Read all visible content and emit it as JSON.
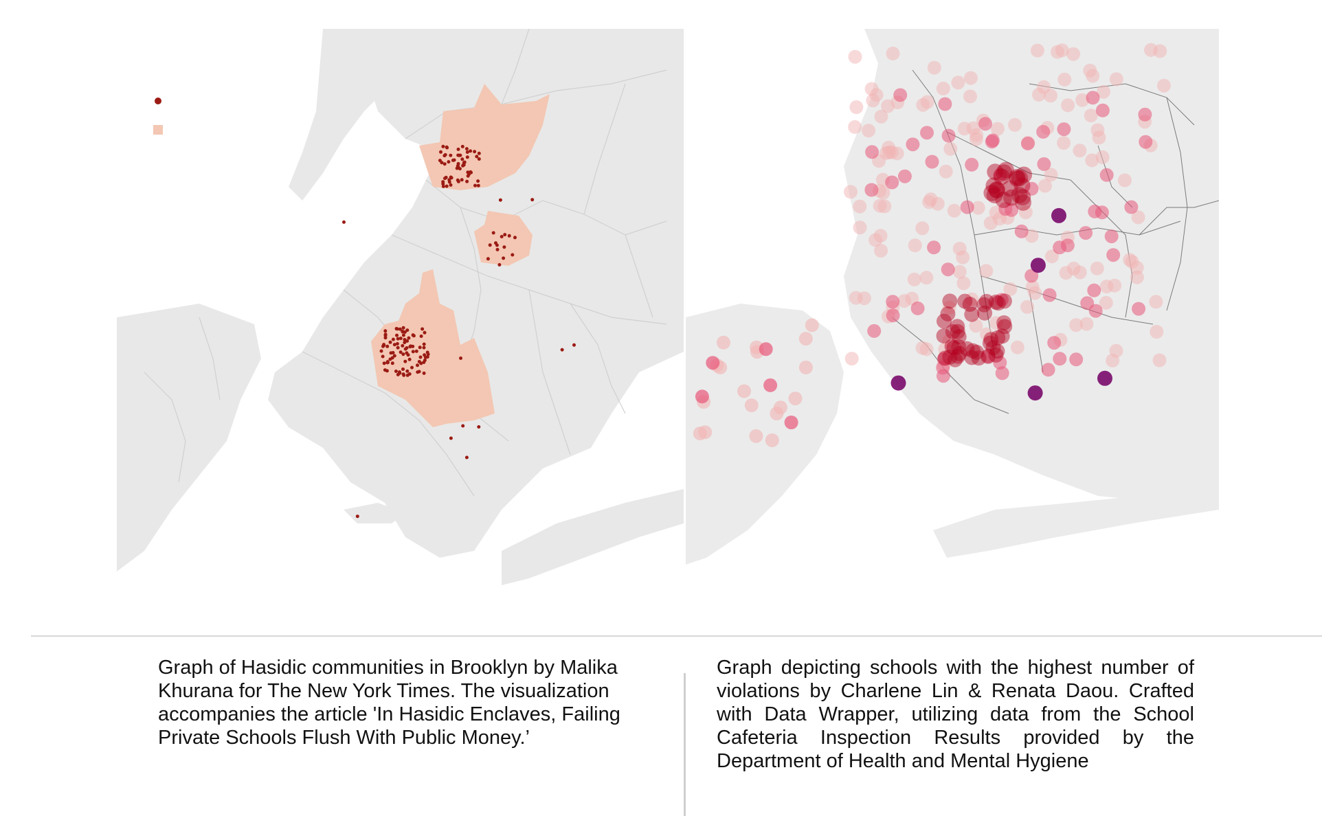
{
  "captions": {
    "left": "Graph of Hasidic communities in Brooklyn by Malika Khurana for The New York Times. The visualization accompanies the article 'In Hasidic Enclaves, Failing Private Schools Flush With Public Money.’",
    "right": "Graph depicting schools with the highest number of violations by Charlene Lin & Renata Daou. Crafted with Data Wrapper, utilizing data from the School Cafeteria Inspection Results provided by the Department of Health and Mental Hygiene"
  },
  "colors": {
    "land": "#e8e8e8",
    "border": "#cfcfcf",
    "enclave": "#f3c7b3",
    "hasidic_dot": "#9b1b14",
    "school_light": "#f2b4b4",
    "school_mid": "#e8587a",
    "school_dark": "#b3001e",
    "school_purple": "#7a0a6b"
  },
  "legend_icons": [
    "dot-icon",
    "square-icon"
  ]
}
